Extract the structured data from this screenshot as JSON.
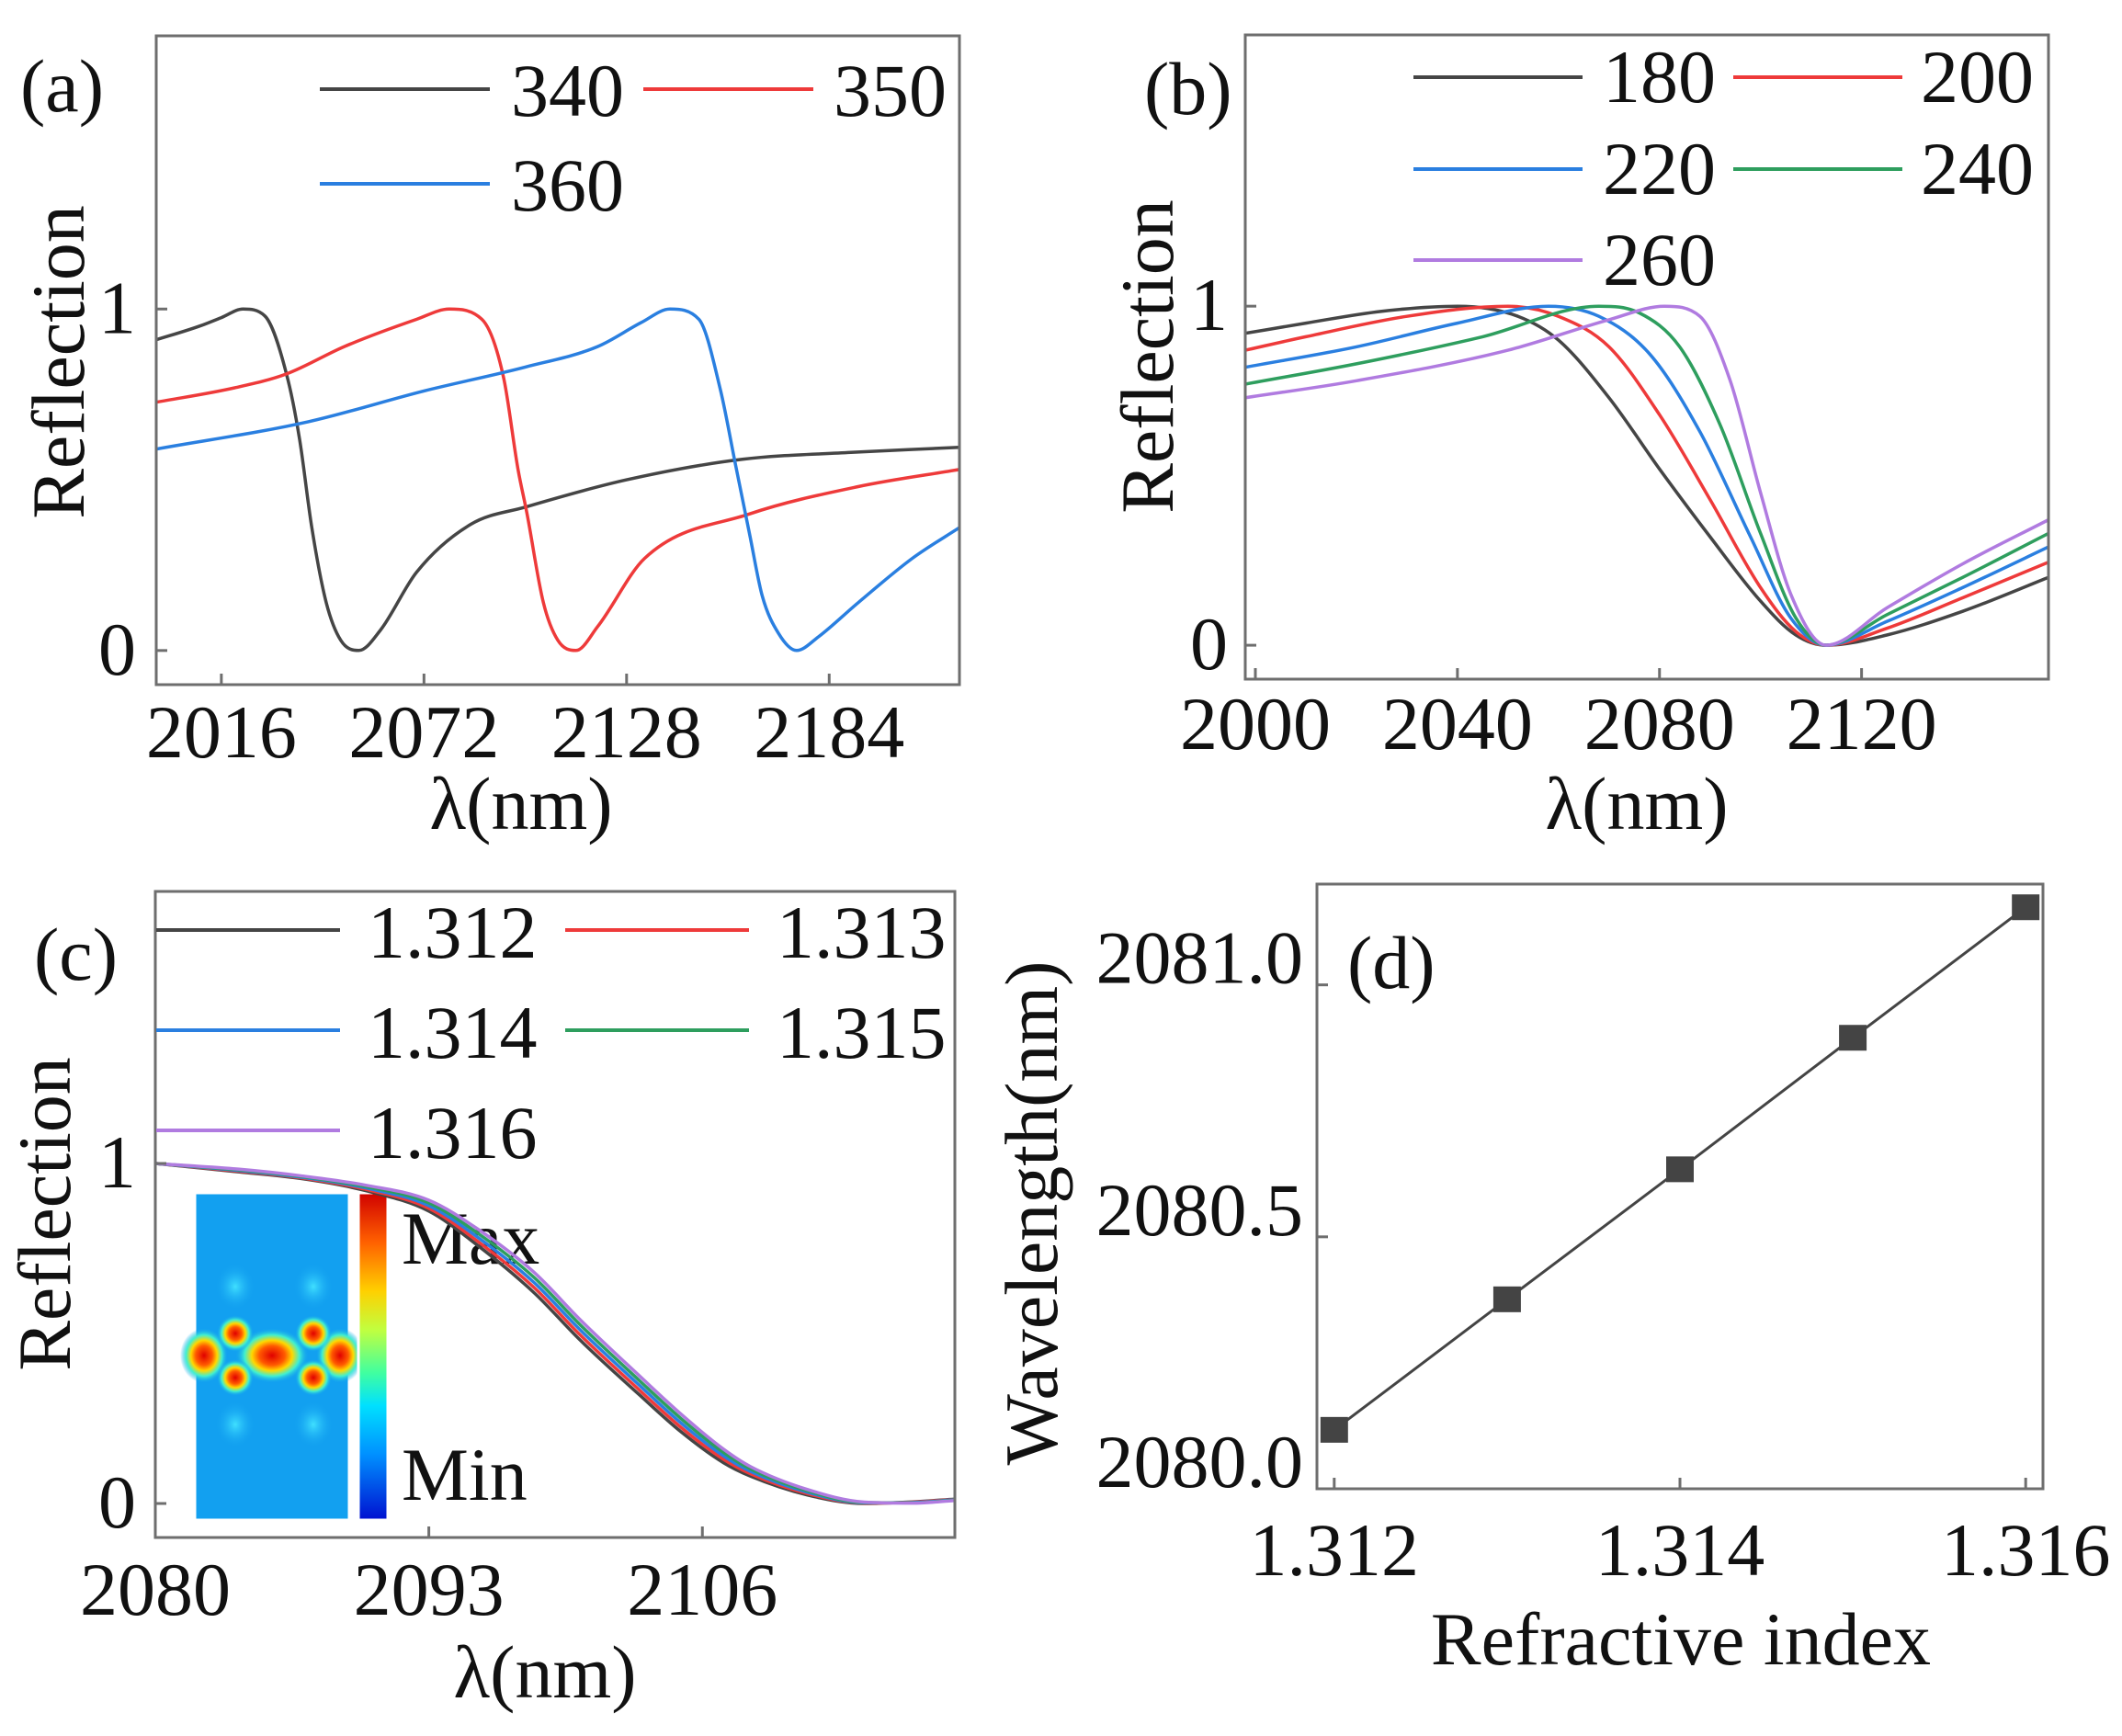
{
  "chart_data": [
    {
      "type": "line",
      "panel_label": "(a)",
      "xlabel": "λ(nm)",
      "ylabel": "Reflection",
      "xlim": [
        1998,
        2220
      ],
      "ylim": [
        -0.1,
        1.8
      ],
      "xticks": [
        "2016",
        "2072",
        "2128",
        "2184"
      ],
      "yticks": [
        "0",
        "1"
      ],
      "grid": false,
      "legend_placement": "top-right",
      "series": [
        {
          "name": "340",
          "color": "#454545",
          "points": [
            [
              1998,
              0.91
            ],
            [
              2010,
              0.95
            ],
            [
              2016,
              0.975
            ],
            [
              2022,
              1.0
            ],
            [
              2028,
              0.98
            ],
            [
              2034,
              0.81
            ],
            [
              2037.6,
              0.62
            ],
            [
              2041,
              0.36
            ],
            [
              2045,
              0.14
            ],
            [
              2049,
              0.03
            ],
            [
              2054,
              0.0
            ],
            [
              2060,
              0.06
            ],
            [
              2070,
              0.23
            ],
            [
              2085,
              0.37
            ],
            [
              2100,
              0.42
            ],
            [
              2128,
              0.5
            ],
            [
              2160,
              0.56
            ],
            [
              2190,
              0.58
            ],
            [
              2220,
              0.595
            ]
          ]
        },
        {
          "name": "350",
          "color": "#ee3a3a",
          "points": [
            [
              1998,
              0.727
            ],
            [
              2020,
              0.77
            ],
            [
              2034,
              0.81
            ],
            [
              2050,
              0.89
            ],
            [
              2070,
              0.97
            ],
            [
              2079,
              1.0
            ],
            [
              2088,
              0.97
            ],
            [
              2094,
              0.8
            ],
            [
              2098,
              0.53
            ],
            [
              2100.5,
              0.4
            ],
            [
              2105,
              0.14
            ],
            [
              2109,
              0.03
            ],
            [
              2114,
              0.0
            ],
            [
              2120,
              0.07
            ],
            [
              2133,
              0.27
            ],
            [
              2162,
              0.4
            ],
            [
              2192,
              0.48
            ],
            [
              2220,
              0.53
            ]
          ]
        },
        {
          "name": "360",
          "color": "#2a7fe0",
          "points": [
            [
              1998,
              0.59
            ],
            [
              2040,
              0.67
            ],
            [
              2072,
              0.76
            ],
            [
              2100,
              0.83
            ],
            [
              2120,
              0.89
            ],
            [
              2132,
              0.96
            ],
            [
              2140,
              1.0
            ],
            [
              2148,
              0.97
            ],
            [
              2154,
              0.76
            ],
            [
              2158,
              0.55
            ],
            [
              2162,
              0.34
            ],
            [
              2165.5,
              0.16
            ],
            [
              2170,
              0.05
            ],
            [
              2175,
              0.0
            ],
            [
              2181,
              0.04
            ],
            [
              2192,
              0.14
            ],
            [
              2207,
              0.27
            ],
            [
              2220,
              0.36
            ]
          ]
        }
      ]
    },
    {
      "type": "line",
      "panel_label": "(b)",
      "xlabel": "λ(nm)",
      "ylabel": "Reflection",
      "xlim": [
        1998,
        2157
      ],
      "ylim": [
        -0.1,
        1.8
      ],
      "xticks": [
        "2000",
        "2040",
        "2080",
        "2120"
      ],
      "yticks": [
        "0",
        "1"
      ],
      "grid": false,
      "legend_placement": "top-right",
      "series": [
        {
          "name": "180",
          "color": "#454545",
          "points": [
            [
              1998,
              0.92
            ],
            [
              2010,
              0.95
            ],
            [
              2025,
              0.985
            ],
            [
              2040,
              1.0
            ],
            [
              2052,
              0.97
            ],
            [
              2060,
              0.9
            ],
            [
              2070,
              0.73
            ],
            [
              2080,
              0.52
            ],
            [
              2090,
              0.32
            ],
            [
              2100,
              0.13
            ],
            [
              2107,
              0.03
            ],
            [
              2113,
              0.0
            ],
            [
              2125,
              0.03
            ],
            [
              2140,
              0.1
            ],
            [
              2157,
              0.2
            ]
          ]
        },
        {
          "name": "200",
          "color": "#ee3a3a",
          "points": [
            [
              1998,
              0.87
            ],
            [
              2010,
              0.91
            ],
            [
              2030,
              0.97
            ],
            [
              2050,
              1.0
            ],
            [
              2060,
              0.97
            ],
            [
              2070,
              0.88
            ],
            [
              2080,
              0.68
            ],
            [
              2090,
              0.43
            ],
            [
              2100,
              0.17
            ],
            [
              2107,
              0.04
            ],
            [
              2113,
              0.0
            ],
            [
              2125,
              0.05
            ],
            [
              2140,
              0.14
            ],
            [
              2157,
              0.245
            ]
          ]
        },
        {
          "name": "220",
          "color": "#2a7fe0",
          "points": [
            [
              1998,
              0.82
            ],
            [
              2020,
              0.88
            ],
            [
              2040,
              0.95
            ],
            [
              2058,
              1.0
            ],
            [
              2068,
              0.97
            ],
            [
              2078,
              0.86
            ],
            [
              2088,
              0.63
            ],
            [
              2098,
              0.32
            ],
            [
              2106,
              0.08
            ],
            [
              2113,
              0.0
            ],
            [
              2125,
              0.07
            ],
            [
              2140,
              0.17
            ],
            [
              2157,
              0.29
            ]
          ]
        },
        {
          "name": "240",
          "color": "#2e9e5e",
          "points": [
            [
              1998,
              0.77
            ],
            [
              2020,
              0.83
            ],
            [
              2045,
              0.91
            ],
            [
              2068,
              1.0
            ],
            [
              2076,
              0.98
            ],
            [
              2084,
              0.88
            ],
            [
              2092,
              0.65
            ],
            [
              2100,
              0.33
            ],
            [
              2107,
              0.08
            ],
            [
              2113,
              0.0
            ],
            [
              2125,
              0.09
            ],
            [
              2140,
              0.2
            ],
            [
              2157,
              0.33
            ]
          ]
        },
        {
          "name": "260",
          "color": "#b07be0",
          "points": [
            [
              1998,
              0.73
            ],
            [
              2020,
              0.78
            ],
            [
              2050,
              0.87
            ],
            [
              2070,
              0.96
            ],
            [
              2081,
              1.0
            ],
            [
              2088,
              0.97
            ],
            [
              2094,
              0.78
            ],
            [
              2100,
              0.45
            ],
            [
              2106,
              0.15
            ],
            [
              2113,
              0.0
            ],
            [
              2125,
              0.11
            ],
            [
              2140,
              0.24
            ],
            [
              2157,
              0.37
            ]
          ]
        }
      ]
    },
    {
      "type": "line",
      "panel_label": "(c)",
      "xlabel": "λ(nm)",
      "ylabel": "Reflection",
      "xlim": [
        2080,
        2118
      ],
      "ylim": [
        -0.1,
        1.8
      ],
      "xticks": [
        "2080",
        "2093",
        "2106"
      ],
      "yticks": [
        "0",
        "1"
      ],
      "grid": false,
      "legend_placement": "top",
      "inset": {
        "max_label": "Max",
        "min_label": "Min"
      },
      "x": [
        2080,
        2084,
        2087,
        2090,
        2093,
        2095.3,
        2098,
        2100.2,
        2103,
        2105,
        2107,
        2108.3,
        2111,
        2113.7,
        2116,
        2118
      ],
      "series": [
        {
          "name": "1.312",
          "color": "#454545",
          "values": [
            1.0,
            0.975,
            0.955,
            0.92,
            0.86,
            0.76,
            0.62,
            0.48,
            0.32,
            0.21,
            0.12,
            0.08,
            0.025,
            0.0,
            0.005,
            0.013
          ]
        },
        {
          "name": "1.313",
          "color": "#ee3a3a",
          "values": [
            1.0,
            0.977,
            0.957,
            0.924,
            0.868,
            0.772,
            0.635,
            0.495,
            0.334,
            0.223,
            0.13,
            0.087,
            0.029,
            0.001,
            0.004,
            0.012
          ]
        },
        {
          "name": "1.314",
          "color": "#2a7fe0",
          "values": [
            1.0,
            0.979,
            0.959,
            0.928,
            0.876,
            0.784,
            0.65,
            0.51,
            0.348,
            0.236,
            0.14,
            0.094,
            0.033,
            0.002,
            0.003,
            0.011
          ]
        },
        {
          "name": "1.315",
          "color": "#2e9e5e",
          "values": [
            1.0,
            0.981,
            0.961,
            0.932,
            0.884,
            0.796,
            0.665,
            0.525,
            0.362,
            0.249,
            0.15,
            0.101,
            0.037,
            0.003,
            0.002,
            0.01
          ]
        },
        {
          "name": "1.316",
          "color": "#b07be0",
          "values": [
            1.0,
            0.983,
            0.963,
            0.936,
            0.892,
            0.808,
            0.68,
            0.54,
            0.376,
            0.262,
            0.16,
            0.108,
            0.041,
            0.004,
            0.001,
            0.009
          ]
        }
      ]
    },
    {
      "type": "line",
      "panel_label": "(d)",
      "xlabel": "Refractive index",
      "ylabel": "Wavelength(nm)",
      "xlim": [
        1.3119,
        1.3161
      ],
      "ylim": [
        2080.0,
        2081.2
      ],
      "xticks": [
        "1.312",
        "1.314",
        "1.316"
      ],
      "yticks": [
        "2080.0",
        "2080.5",
        "2081.0"
      ],
      "grid": false,
      "marker": "square",
      "color": "#444444",
      "x": [
        1.312,
        1.313,
        1.314,
        1.315,
        1.316
      ],
      "y": [
        2080.117,
        2080.376,
        2080.634,
        2080.895,
        2081.154
      ]
    }
  ]
}
